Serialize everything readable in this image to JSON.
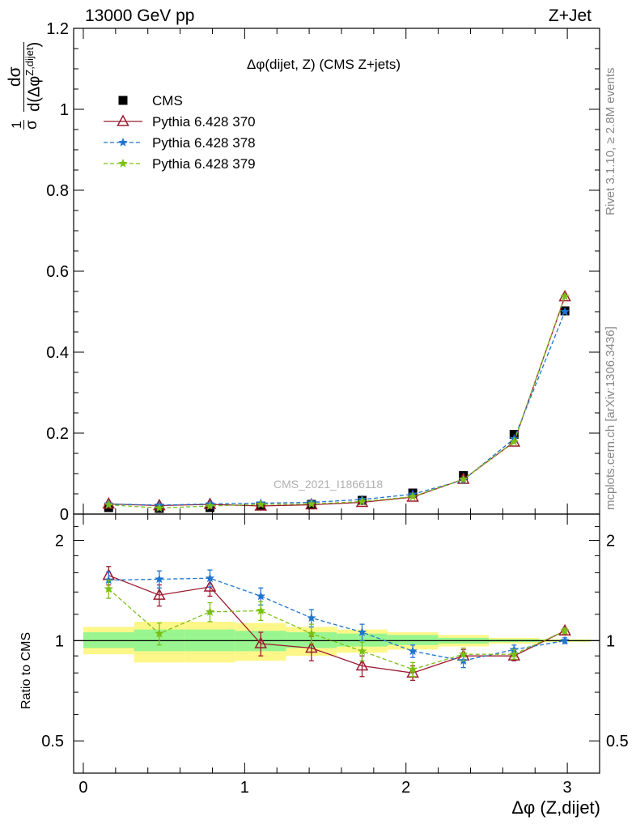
{
  "header": {
    "left": "13000 GeV pp",
    "right": "Z+Jet"
  },
  "side_labels": {
    "rivet": "Rivet 3.1.10, ≥ 2.8M events",
    "mcplots": "mcplots.cern.ch [arXiv:1306.3436]"
  },
  "watermark": "CMS_2021_I1866118",
  "chart_data": [
    {
      "type": "scatter",
      "title": "Δφ(dijet, Z) (CMS Z+jets)",
      "ylabel": "1/σ dσ/d(Δφ^{Z,dijet})",
      "ylabel_parts": {
        "numer_prefix": "1",
        "numer": "dσ",
        "denom_prefix": "σ",
        "denom": "d(Δφ",
        "sup": "Z,dijet",
        "close": ")"
      },
      "xlim": [
        -0.06,
        3.2
      ],
      "ylim": [
        0,
        1.2
      ],
      "yticks": [
        0,
        0.2,
        0.4,
        0.6,
        0.8,
        1,
        1.2
      ],
      "ytick_labels": [
        "0",
        "0.2",
        "0.4",
        "0.6",
        "0.8",
        "1",
        "1.2"
      ],
      "x": [
        0.157,
        0.471,
        0.785,
        1.1,
        1.414,
        1.728,
        2.042,
        2.356,
        2.67,
        2.985
      ],
      "series": [
        {
          "name": "CMS",
          "color": "#000000",
          "marker": "square",
          "line": "none",
          "values": [
            0.016,
            0.014,
            0.016,
            0.02,
            0.024,
            0.034,
            0.052,
            0.095,
            0.197,
            0.502
          ]
        },
        {
          "name": "Pythia 6.428 370",
          "color": "#9b1b30",
          "marker": "triangle",
          "line": "solid",
          "values": [
            0.025,
            0.021,
            0.024,
            0.02,
            0.023,
            0.029,
            0.042,
            0.086,
            0.178,
            0.537
          ]
        },
        {
          "name": "Pythia 6.428 378",
          "color": "#1e74d0",
          "marker": "star",
          "line": "dashed",
          "values": [
            0.025,
            0.022,
            0.025,
            0.027,
            0.029,
            0.036,
            0.049,
            0.084,
            0.186,
            0.5
          ]
        },
        {
          "name": "Pythia 6.428 379",
          "color": "#7bbf14",
          "marker": "star",
          "line": "dashed",
          "values": [
            0.023,
            0.015,
            0.02,
            0.024,
            0.025,
            0.031,
            0.043,
            0.086,
            0.179,
            0.538
          ]
        }
      ],
      "legend_position": "top-left"
    },
    {
      "type": "scatter",
      "xlabel": "Δφ (Z,dijet)",
      "ylabel": "Ratio to CMS",
      "scale": "log",
      "ylim": [
        0.4,
        2.4
      ],
      "yticks": [
        0.5,
        1,
        2
      ],
      "ytick_labels": [
        "0.5",
        "1",
        "2"
      ],
      "xticks": [
        0,
        1,
        2,
        3
      ],
      "xtick_labels": [
        "0",
        "1",
        "2",
        "3"
      ],
      "bin_edges": [
        0,
        0.314,
        0.628,
        0.942,
        1.257,
        1.571,
        1.885,
        2.199,
        2.513,
        2.827,
        3.142
      ],
      "band_inner": [
        [
          0.95,
          1.06
        ],
        [
          0.93,
          1.08
        ],
        [
          0.93,
          1.08
        ],
        [
          0.93,
          1.07
        ],
        [
          0.95,
          1.06
        ],
        [
          0.96,
          1.05
        ],
        [
          0.97,
          1.04
        ],
        [
          0.98,
          1.02
        ],
        [
          0.99,
          1.01
        ],
        [
          0.995,
          1.005
        ]
      ],
      "band_outer": [
        [
          0.91,
          1.1
        ],
        [
          0.86,
          1.14
        ],
        [
          0.86,
          1.14
        ],
        [
          0.87,
          1.13
        ],
        [
          0.9,
          1.1
        ],
        [
          0.92,
          1.08
        ],
        [
          0.94,
          1.06
        ],
        [
          0.96,
          1.04
        ],
        [
          0.98,
          1.02
        ],
        [
          0.99,
          1.01
        ]
      ],
      "band_colors": {
        "inner": "#99f58f",
        "outer": "#fdf78a"
      },
      "x": [
        0.157,
        0.471,
        0.785,
        1.1,
        1.414,
        1.728,
        2.042,
        2.356,
        2.67,
        2.985
      ],
      "series": [
        {
          "name": "Pythia 6.428 370",
          "color": "#9b1b30",
          "marker": "triangle",
          "line": "solid",
          "values": [
            1.57,
            1.37,
            1.45,
            0.98,
            0.95,
            0.84,
            0.8,
            0.9,
            0.9,
            1.07
          ],
          "errors": [
            0.1,
            0.1,
            0.09,
            0.08,
            0.08,
            0.06,
            0.04,
            0.04,
            0.03,
            0.02
          ]
        },
        {
          "name": "Pythia 6.428 378",
          "color": "#1e74d0",
          "marker": "star",
          "line": "dashed",
          "values": [
            1.52,
            1.53,
            1.54,
            1.36,
            1.17,
            1.06,
            0.93,
            0.87,
            0.94,
            1.0
          ],
          "errors": [
            0.09,
            0.09,
            0.09,
            0.08,
            0.07,
            0.06,
            0.04,
            0.04,
            0.03,
            0.02
          ]
        },
        {
          "name": "Pythia 6.428 379",
          "color": "#7bbf14",
          "marker": "star",
          "line": "dashed",
          "values": [
            1.43,
            1.05,
            1.22,
            1.23,
            1.05,
            0.93,
            0.82,
            0.91,
            0.91,
            1.07
          ],
          "errors": [
            0.09,
            0.08,
            0.08,
            0.08,
            0.07,
            0.06,
            0.04,
            0.04,
            0.03,
            0.02
          ]
        }
      ]
    }
  ]
}
